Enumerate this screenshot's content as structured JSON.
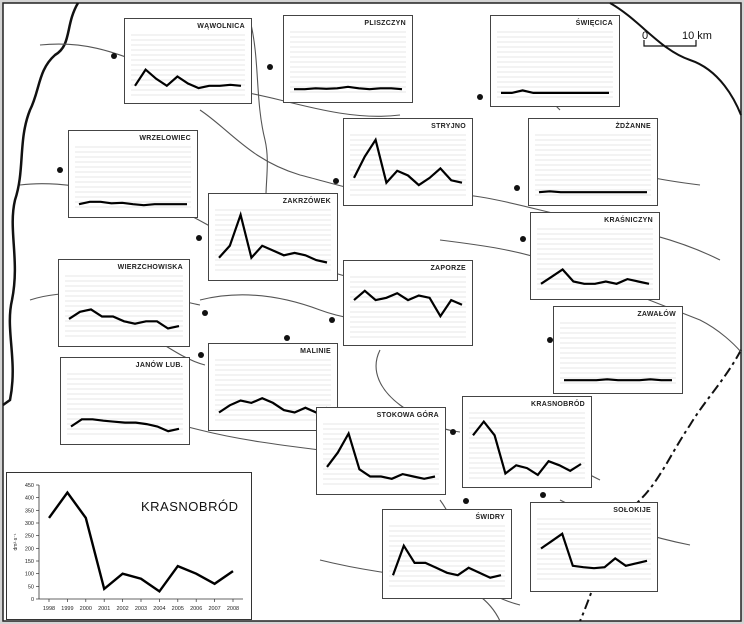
{
  "scale_bar": {
    "start": "0",
    "end": "10 km"
  },
  "stations": [
    {
      "id": "wawolnica",
      "name": "WĄWOLNICA",
      "values": [
        0.2,
        0.55,
        0.35,
        0.2,
        0.4,
        0.25,
        0.15,
        0.2,
        0.2,
        0.22,
        0.2
      ]
    },
    {
      "id": "pliszczyn",
      "name": "PLISZCZYN",
      "values": [
        0.1,
        0.1,
        0.12,
        0.11,
        0.12,
        0.15,
        0.12,
        0.1,
        0.12,
        0.12,
        0.1
      ]
    },
    {
      "id": "swiecica",
      "name": "ŚWIĘCICA",
      "values": [
        0.1,
        0.1,
        0.15,
        0.1,
        0.1,
        0.1,
        0.1,
        0.1,
        0.1,
        0.1,
        0.1
      ]
    },
    {
      "id": "wrzelowiec",
      "name": "WRZELOWIEC",
      "values": [
        0.1,
        0.15,
        0.15,
        0.12,
        0.13,
        0.1,
        0.08,
        0.1,
        0.1,
        0.1,
        0.1
      ]
    },
    {
      "id": "stryjno",
      "name": "STRYJNO",
      "values": [
        0.4,
        0.85,
        1.2,
        0.3,
        0.55,
        0.45,
        0.25,
        0.4,
        0.6,
        0.35,
        0.3
      ]
    },
    {
      "id": "zdzanne",
      "name": "ŻDŻANNE",
      "values": [
        0.1,
        0.12,
        0.1,
        0.1,
        0.1,
        0.1,
        0.1,
        0.1,
        0.1,
        0.1,
        0.1
      ]
    },
    {
      "id": "zakrzowek",
      "name": "ZAKRZÓWEK",
      "values": [
        0.3,
        0.55,
        1.2,
        0.3,
        0.55,
        0.45,
        0.35,
        0.4,
        0.35,
        0.25,
        0.2
      ]
    },
    {
      "id": "krasniczyn",
      "name": "KRAŚNICZYN",
      "values": [
        0.15,
        0.3,
        0.45,
        0.2,
        0.15,
        0.15,
        0.2,
        0.15,
        0.25,
        0.2,
        0.15
      ]
    },
    {
      "id": "wierzchowiska",
      "name": "WIERZCHOWISKA",
      "values": [
        0.4,
        0.55,
        0.6,
        0.45,
        0.45,
        0.35,
        0.3,
        0.35,
        0.35,
        0.2,
        0.25
      ]
    },
    {
      "id": "zaporze",
      "name": "ZAPORZE",
      "values": [
        0.8,
        1.0,
        0.8,
        0.85,
        0.95,
        0.8,
        0.9,
        0.85,
        0.45,
        0.8,
        0.7
      ]
    },
    {
      "id": "zawalow",
      "name": "ZAWAŁÓW",
      "values": [
        0.1,
        0.1,
        0.1,
        0.1,
        0.12,
        0.1,
        0.1,
        0.1,
        0.12,
        0.1,
        0.1
      ]
    },
    {
      "id": "janow",
      "name": "JANÓW LUB.",
      "values": [
        0.2,
        0.35,
        0.35,
        0.32,
        0.3,
        0.28,
        0.28,
        0.25,
        0.2,
        0.1,
        0.15
      ]
    },
    {
      "id": "malinie",
      "name": "MALINIE",
      "values": [
        0.2,
        0.35,
        0.45,
        0.4,
        0.5,
        0.4,
        0.25,
        0.2,
        0.3,
        0.2,
        0.3
      ]
    },
    {
      "id": "stokowagora",
      "name": "STOKOWA GÓRA",
      "values": [
        0.4,
        0.7,
        1.1,
        0.35,
        0.2,
        0.2,
        0.15,
        0.25,
        0.2,
        0.15,
        0.2
      ]
    },
    {
      "id": "krasnobrod_small",
      "name": "KRASNOBRÓD",
      "values": [
        320,
        420,
        320,
        40,
        100,
        80,
        30,
        130,
        100,
        60,
        110
      ]
    },
    {
      "id": "swidry",
      "name": "ŚWIDRY",
      "values": [
        0.3,
        0.9,
        0.55,
        0.55,
        0.45,
        0.35,
        0.3,
        0.45,
        0.35,
        0.25,
        0.3
      ]
    },
    {
      "id": "solokije",
      "name": "SOŁOKIJE",
      "values": [
        0.7,
        0.85,
        1.0,
        0.35,
        0.32,
        0.3,
        0.32,
        0.5,
        0.35,
        0.4,
        0.45
      ]
    }
  ],
  "inset_chart": {
    "title": "KRASNOBRÓD",
    "ylabel": "dm³·s⁻¹",
    "yticks": [
      "0",
      "50",
      "100",
      "150",
      "200",
      "250",
      "300",
      "350",
      "400",
      "450"
    ],
    "ylim": [
      0,
      450
    ],
    "xticks": [
      "1998",
      "1999",
      "2000",
      "2001",
      "2002",
      "2003",
      "2004",
      "2005",
      "2006",
      "2007",
      "2008"
    ]
  },
  "chart_data": {
    "type": "line",
    "title": "KRASNOBRÓD",
    "xlabel": "",
    "ylabel": "dm³·s⁻¹",
    "x": [
      "1998",
      "1999",
      "2000",
      "2001",
      "2002",
      "2003",
      "2004",
      "2005",
      "2006",
      "2007",
      "2008"
    ],
    "ylim": [
      0,
      450
    ],
    "grid": false,
    "series": [
      {
        "values": [
          320,
          420,
          320,
          40,
          100,
          80,
          30,
          130,
          100,
          60,
          110
        ]
      }
    ]
  }
}
